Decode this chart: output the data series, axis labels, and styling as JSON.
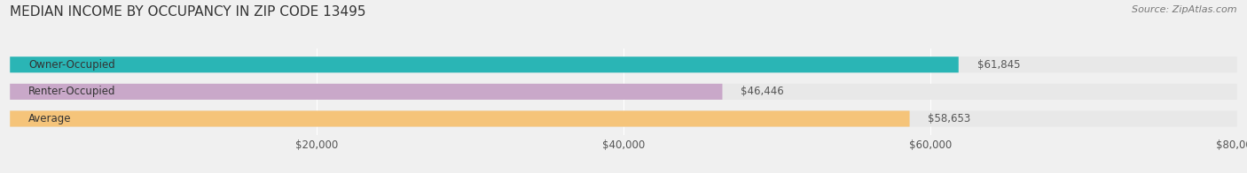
{
  "title": "MEDIAN INCOME BY OCCUPANCY IN ZIP CODE 13495",
  "source": "Source: ZipAtlas.com",
  "categories": [
    "Owner-Occupied",
    "Renter-Occupied",
    "Average"
  ],
  "values": [
    61845,
    46446,
    58653
  ],
  "bar_colors": [
    "#2ab5b5",
    "#c9a8c9",
    "#f5c47a"
  ],
  "bar_labels": [
    "$61,845",
    "$46,446",
    "$58,653"
  ],
  "xlim": [
    0,
    80000
  ],
  "background_color": "#f0f0f0",
  "bar_background_color": "#e8e8e8",
  "title_fontsize": 11,
  "source_fontsize": 8,
  "label_fontsize": 8.5,
  "tick_fontsize": 8.5
}
